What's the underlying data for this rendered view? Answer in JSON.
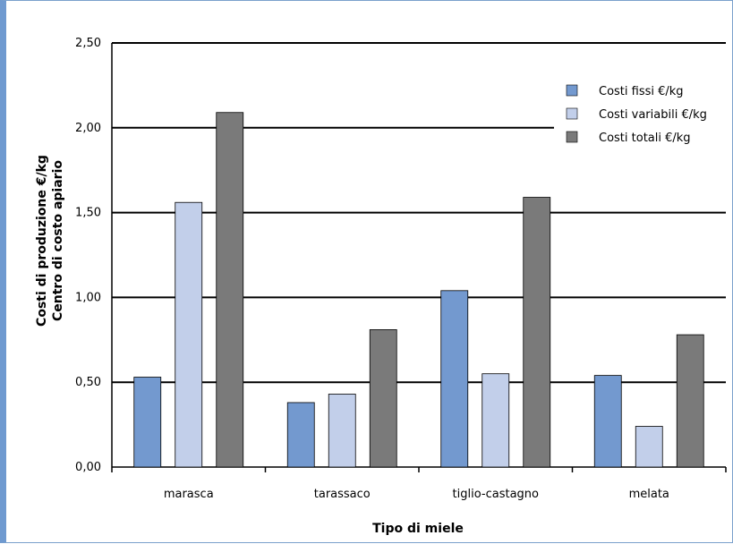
{
  "chart_data": {
    "type": "bar",
    "title": "",
    "xlabel": "Tipo di miele",
    "ylabel_line1": "Costi di produzione €/kg",
    "ylabel_line2": "Centro di costo apiario",
    "categories": [
      "marasca",
      "tarassaco",
      "tiglio-castagno",
      "melata"
    ],
    "ylim": [
      0,
      2.5
    ],
    "yticks": [
      "0,00",
      "0,50",
      "1,00",
      "1,50",
      "2,00",
      "2,50"
    ],
    "ytick_values": [
      0,
      0.5,
      1.0,
      1.5,
      2.0,
      2.5
    ],
    "grid": true,
    "legend_position": "top-right",
    "series": [
      {
        "name": "Costi fissi €/kg",
        "color": "#7399cf",
        "values": [
          0.53,
          0.38,
          1.04,
          0.54
        ]
      },
      {
        "name": "Costi variabili €/kg",
        "color": "#c2cfea",
        "values": [
          1.56,
          0.43,
          0.55,
          0.24
        ]
      },
      {
        "name": "Costi totali €/kg",
        "color": "#7a7a7a",
        "values": [
          2.09,
          0.81,
          1.59,
          0.78
        ]
      }
    ]
  }
}
